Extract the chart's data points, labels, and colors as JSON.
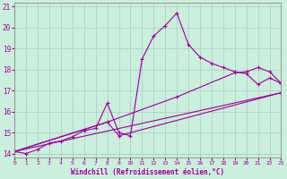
{
  "background_color": "#cceedd",
  "line_color": "#990099",
  "xlabel": "Windchill (Refroidissement éolien,°C)",
  "xlim": [
    0,
    23
  ],
  "ylim": [
    13.8,
    21.2
  ],
  "yticks": [
    14,
    15,
    16,
    17,
    18,
    19,
    20,
    21
  ],
  "xticks": [
    0,
    1,
    2,
    3,
    4,
    5,
    6,
    7,
    8,
    9,
    10,
    11,
    12,
    13,
    14,
    15,
    16,
    17,
    18,
    19,
    20,
    21,
    22,
    23
  ],
  "series": [
    {
      "x": [
        0,
        1,
        2,
        3,
        4,
        5,
        6,
        7,
        8,
        9,
        10,
        11,
        12,
        13,
        14,
        15,
        16,
        17,
        18,
        19,
        20,
        21,
        22,
        23
      ],
      "y": [
        14.1,
        14.0,
        14.2,
        14.5,
        14.6,
        14.8,
        15.1,
        15.2,
        16.4,
        15.0,
        14.85,
        18.5,
        19.6,
        20.1,
        20.7,
        19.2,
        18.6,
        18.3,
        18.1,
        17.9,
        17.8,
        17.3,
        17.6,
        17.35
      ]
    },
    {
      "x": [
        0,
        23
      ],
      "y": [
        14.1,
        16.9
      ]
    },
    {
      "x": [
        0,
        8,
        14,
        19,
        20,
        21,
        22,
        23
      ],
      "y": [
        14.1,
        15.5,
        16.7,
        17.85,
        17.9,
        18.1,
        17.9,
        17.35
      ]
    },
    {
      "x": [
        0,
        8,
        9,
        23
      ],
      "y": [
        14.1,
        15.5,
        14.85,
        16.9
      ]
    }
  ]
}
